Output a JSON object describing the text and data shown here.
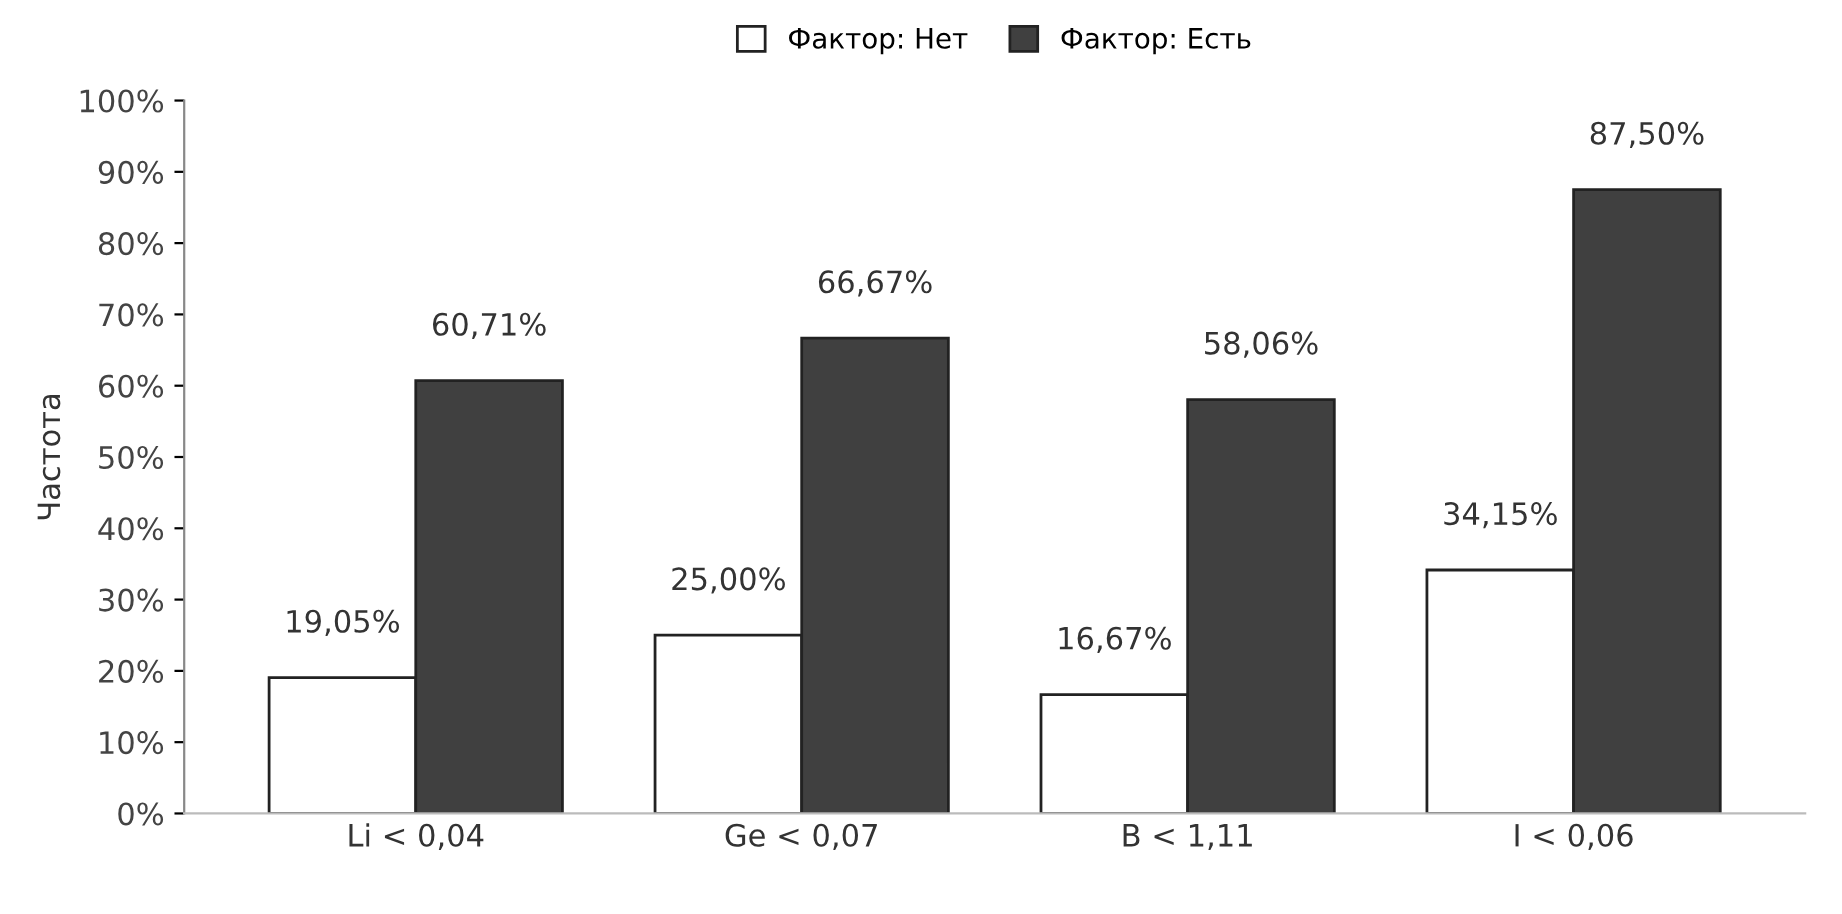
{
  "chart_data": {
    "type": "bar",
    "ylabel": "Частота",
    "categories": [
      "Li < 0,04",
      "Ge < 0,07",
      "B < 1,11",
      "I < 0,06"
    ],
    "series": [
      {
        "name": "Фактор: Нет",
        "color": "#ffffff",
        "values": [
          19.05,
          25.0,
          16.67,
          34.15
        ],
        "value_labels": [
          "19,05%",
          "25,00%",
          "16,67%",
          "34,15%"
        ]
      },
      {
        "name": "Фактор: Есть",
        "color": "#404040",
        "values": [
          60.71,
          66.67,
          58.06,
          87.5
        ],
        "value_labels": [
          "60,71%",
          "66,67%",
          "58,06%",
          "87,50%"
        ]
      }
    ],
    "ylim": [
      0,
      100
    ],
    "yticks": [
      {
        "value": 0,
        "label": "0%"
      },
      {
        "value": 10,
        "label": "10%"
      },
      {
        "value": 20,
        "label": "20%"
      },
      {
        "value": 30,
        "label": "30%"
      },
      {
        "value": 40,
        "label": "40%"
      },
      {
        "value": 50,
        "label": "50%"
      },
      {
        "value": 60,
        "label": "60%"
      },
      {
        "value": 70,
        "label": "70%"
      },
      {
        "value": 80,
        "label": "80%"
      },
      {
        "value": 90,
        "label": "90%"
      },
      {
        "value": 100,
        "label": "100%"
      }
    ],
    "grid": false,
    "legend": "top"
  }
}
